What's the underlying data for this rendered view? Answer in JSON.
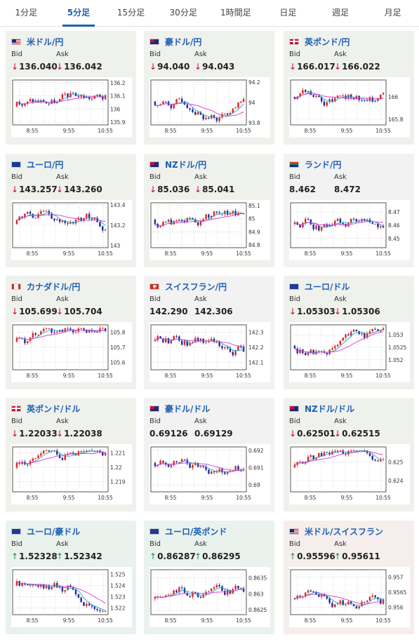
{
  "tabs": [
    "1分足",
    "5分足",
    "15分足",
    "30分足",
    "1時間足",
    "日足",
    "週足",
    "月足"
  ],
  "active_tab": 1,
  "labels": {
    "bid": "Bid",
    "ask": "Ask"
  },
  "x_ticks": [
    "8:55",
    "9:55",
    "10:55"
  ],
  "pairs": [
    {
      "name": "米ドル/円",
      "flag": "us",
      "bid": "136.040",
      "ask": "136.042",
      "dir": "down",
      "y_ticks": [
        "136.2",
        "136.1",
        "136",
        "135.9"
      ],
      "ylim": [
        135.88,
        136.22
      ],
      "seed": 3
    },
    {
      "name": "豪ドル/円",
      "flag": "au",
      "bid": "94.040",
      "ask": "94.043",
      "dir": "down",
      "y_ticks": [
        "94.2",
        "94",
        "93.8"
      ],
      "ylim": [
        93.78,
        94.22
      ],
      "seed": 7
    },
    {
      "name": "英ポンド/円",
      "flag": "gb",
      "bid": "166.017",
      "ask": "166.022",
      "dir": "down",
      "y_ticks": [
        "166",
        "165.8"
      ],
      "ylim": [
        165.75,
        166.15
      ],
      "seed": 11
    },
    {
      "name": "ユーロ/円",
      "flag": "eu",
      "bid": "143.257",
      "ask": "143.260",
      "dir": "down",
      "y_ticks": [
        "143.4",
        "143.2",
        "143"
      ],
      "ylim": [
        142.98,
        143.42
      ],
      "seed": 13
    },
    {
      "name": "NZドル/円",
      "flag": "nz",
      "bid": "85.036",
      "ask": "85.041",
      "dir": "down",
      "y_ticks": [
        "85.1",
        "85",
        "84.9",
        "84.8"
      ],
      "ylim": [
        84.78,
        85.12
      ],
      "seed": 17
    },
    {
      "name": "ランド/円",
      "flag": "za",
      "bid": "8.462",
      "ask": "8.472",
      "dir": "none",
      "y_ticks": [
        "8.47",
        "8.46",
        "8.45"
      ],
      "ylim": [
        8.443,
        8.477
      ],
      "seed": 19
    },
    {
      "name": "カナダドル/円",
      "flag": "ca",
      "bid": "105.699",
      "ask": "105.704",
      "dir": "down",
      "y_ticks": [
        "105.8",
        "105.7",
        "105.6"
      ],
      "ylim": [
        105.55,
        105.85
      ],
      "seed": 23
    },
    {
      "name": "スイスフラン/円",
      "flag": "ch",
      "bid": "142.290",
      "ask": "142.306",
      "dir": "none",
      "y_ticks": [
        "142.3",
        "142.2",
        "142.1"
      ],
      "ylim": [
        142.05,
        142.35
      ],
      "seed": 29
    },
    {
      "name": "ユーロ/ドル",
      "flag": "eu",
      "bid": "1.05303",
      "ask": "1.05306",
      "dir": "down",
      "y_ticks": [
        "1.053",
        "1.0525",
        "1.052"
      ],
      "ylim": [
        1.0516,
        1.0534
      ],
      "seed": 31
    },
    {
      "name": "英ポンド/ドル",
      "flag": "gb",
      "bid": "1.22033",
      "ask": "1.22038",
      "dir": "down",
      "y_ticks": [
        "1.221",
        "1.22",
        "1.219"
      ],
      "ylim": [
        1.2183,
        1.2214
      ],
      "seed": 37
    },
    {
      "name": "豪ドル/ドル",
      "flag": "au",
      "bid": "0.69126",
      "ask": "0.69129",
      "dir": "none",
      "y_ticks": [
        "0.692",
        "0.691",
        "0.69"
      ],
      "ylim": [
        0.6896,
        0.6922
      ],
      "seed": 41
    },
    {
      "name": "NZドル/ドル",
      "flag": "nz",
      "bid": "0.62501",
      "ask": "0.62515",
      "dir": "down",
      "y_ticks": [
        "0.625",
        "0.624"
      ],
      "ylim": [
        0.6234,
        0.6258
      ],
      "seed": 43
    },
    {
      "name": "ユーロ/豪ドル",
      "flag": "eu",
      "bid": "1.52328",
      "ask": "1.52342",
      "dir": "up",
      "y_ticks": [
        "1.525",
        "1.524",
        "1.523",
        "1.522"
      ],
      "ylim": [
        1.5214,
        1.5254
      ],
      "seed": 47
    },
    {
      "name": "ユーロ/英ポンド",
      "flag": "eu",
      "bid": "0.86287",
      "ask": "0.86295",
      "dir": "up",
      "y_ticks": [
        "0.8635",
        "0.863",
        "0.8625"
      ],
      "ylim": [
        0.86235,
        0.86375
      ],
      "seed": 53
    },
    {
      "name": "米ドル/スイスフラン",
      "flag": "us",
      "bid": "0.95596",
      "ask": "0.95611",
      "dir": "up",
      "y_ticks": [
        "0.957",
        "0.9565",
        "0.956"
      ],
      "ylim": [
        0.95575,
        0.95725
      ],
      "seed": 59
    }
  ],
  "colors": {
    "up_candle": "#e0281c",
    "down_candle": "#1f2f9a",
    "ma_short": "#2aa6c8",
    "ma_long": "#d23ad2",
    "link": "#1d5fb5"
  }
}
